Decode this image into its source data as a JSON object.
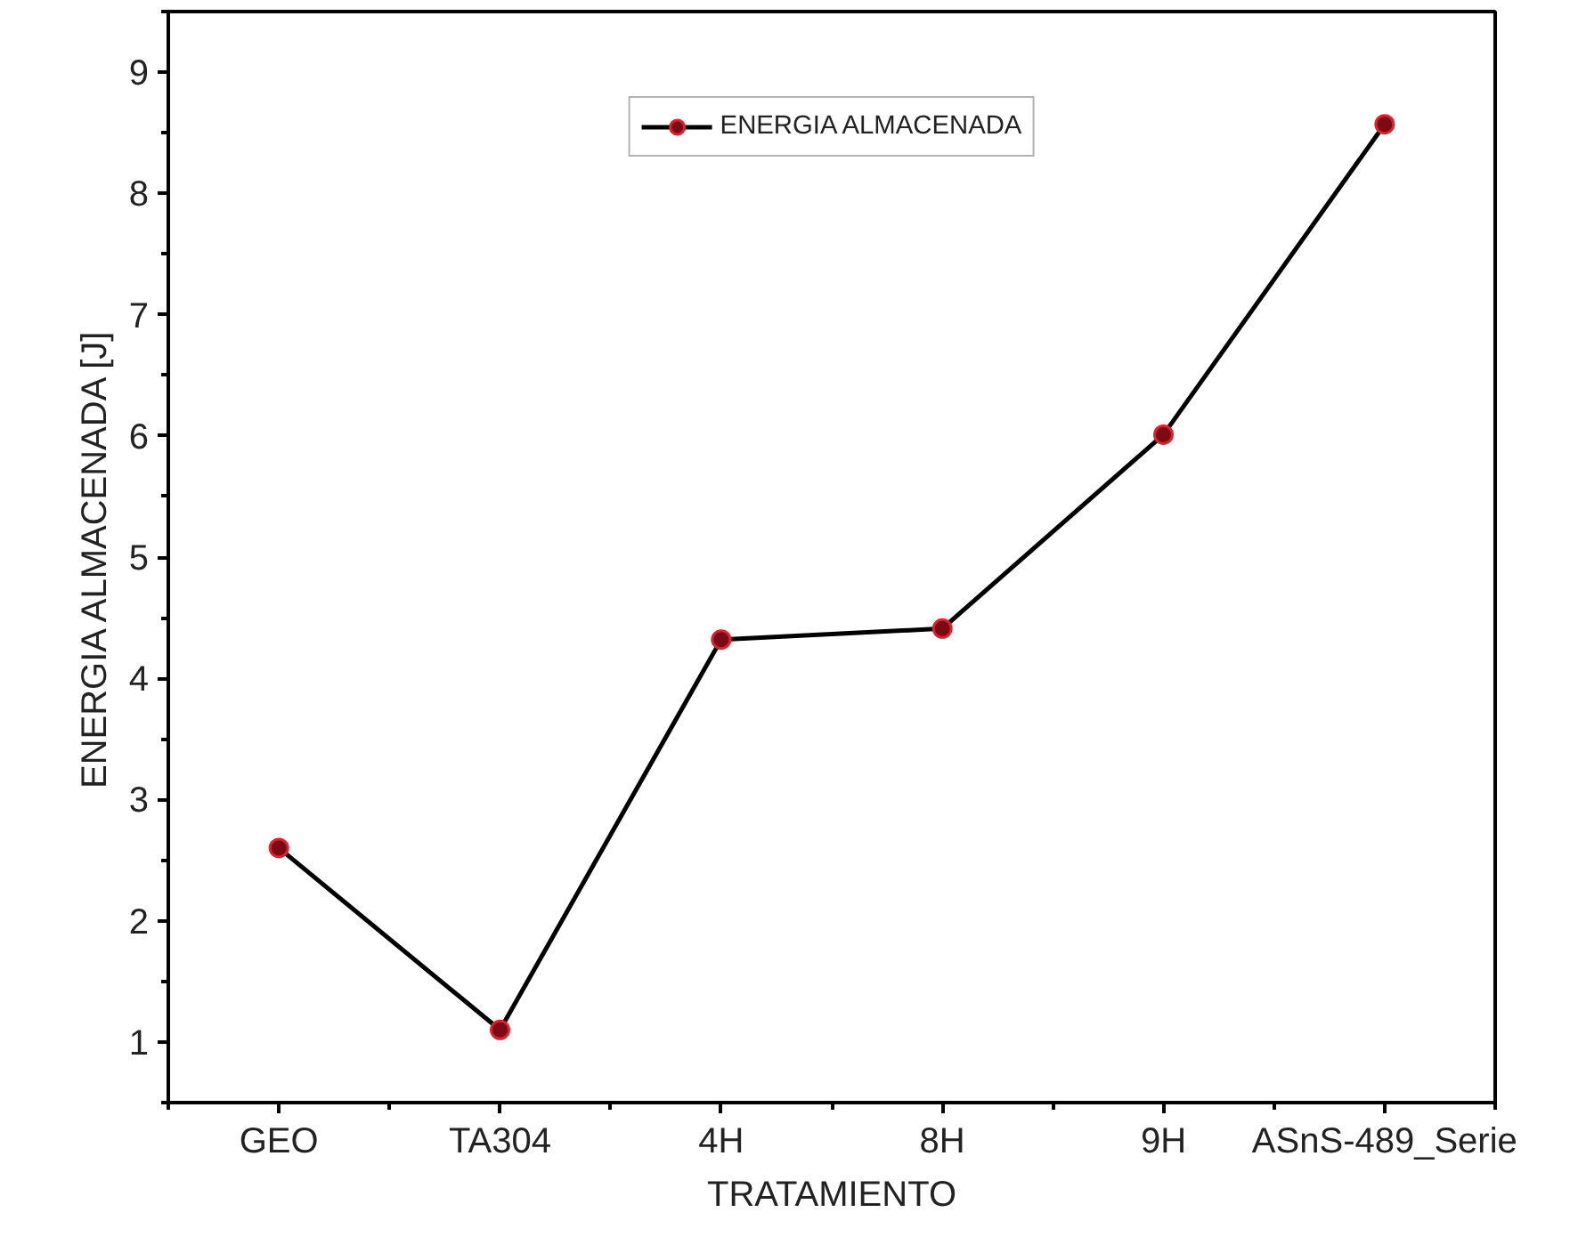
{
  "chart_data": {
    "type": "line",
    "xlabel": "TRATAMIENTO",
    "ylabel": "ENERGIA ALMACENADA [J]",
    "categories": [
      "GEO",
      "TA304",
      "4H",
      "8H",
      "9H",
      "ASnS-489_Serie"
    ],
    "series": [
      {
        "name": "ENERGIA ALMACENADA",
        "color": "#000000",
        "values": [
          2.6,
          1.1,
          4.32,
          4.41,
          6.01,
          8.57
        ]
      }
    ],
    "ylim": [
      0.5,
      9.5
    ],
    "yticks": [
      1,
      2,
      3,
      4,
      5,
      6,
      7,
      8,
      9
    ],
    "marker": "circle",
    "line_style": "solid",
    "grid": false,
    "legend": "top"
  }
}
